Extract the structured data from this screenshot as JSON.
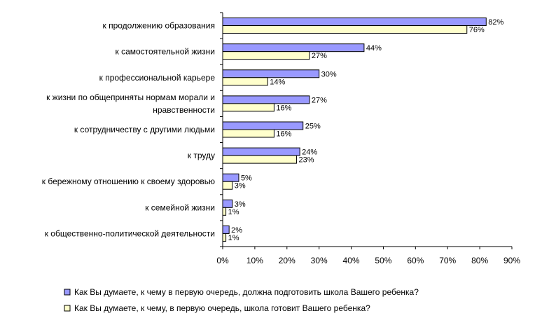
{
  "chart_data": {
    "type": "bar",
    "orientation": "horizontal",
    "categories": [
      [
        "к продолжению образования"
      ],
      [
        "к самостоятельной жизни"
      ],
      [
        "к профессиональной карьере"
      ],
      [
        "к жизни по общеприняты нормам морали и",
        "нравственности"
      ],
      [
        "к сотрудничеству с другими людьми"
      ],
      [
        "к труду"
      ],
      [
        "к бережному отношению к своему здоровью"
      ],
      [
        "к семейной жизни"
      ],
      [
        "к общественно-политической деятельности"
      ]
    ],
    "series": [
      {
        "name": "Как Вы думаете, к чему в первую очередь, должна подготовить школа Вашего ребенка?",
        "values": [
          82,
          44,
          30,
          27,
          25,
          24,
          5,
          3,
          2
        ],
        "color": "#9999ff"
      },
      {
        "name": "Как Вы думаете, к чему, в первую очередь, школа готовит Вашего ребенка?",
        "values": [
          76,
          27,
          14,
          16,
          16,
          23,
          3,
          1,
          1
        ],
        "color": "#ffffcc"
      }
    ],
    "value_suffix": "%",
    "xlim": [
      0,
      90
    ],
    "xticks": [
      0,
      10,
      20,
      30,
      40,
      50,
      60,
      70,
      80,
      90
    ],
    "xtick_labels": [
      "0%",
      "10%",
      "20%",
      "30%",
      "40%",
      "50%",
      "60%",
      "70%",
      "80%",
      "90%"
    ],
    "grid": false,
    "legend_position": "bottom",
    "title": "",
    "xlabel": "",
    "ylabel": ""
  }
}
